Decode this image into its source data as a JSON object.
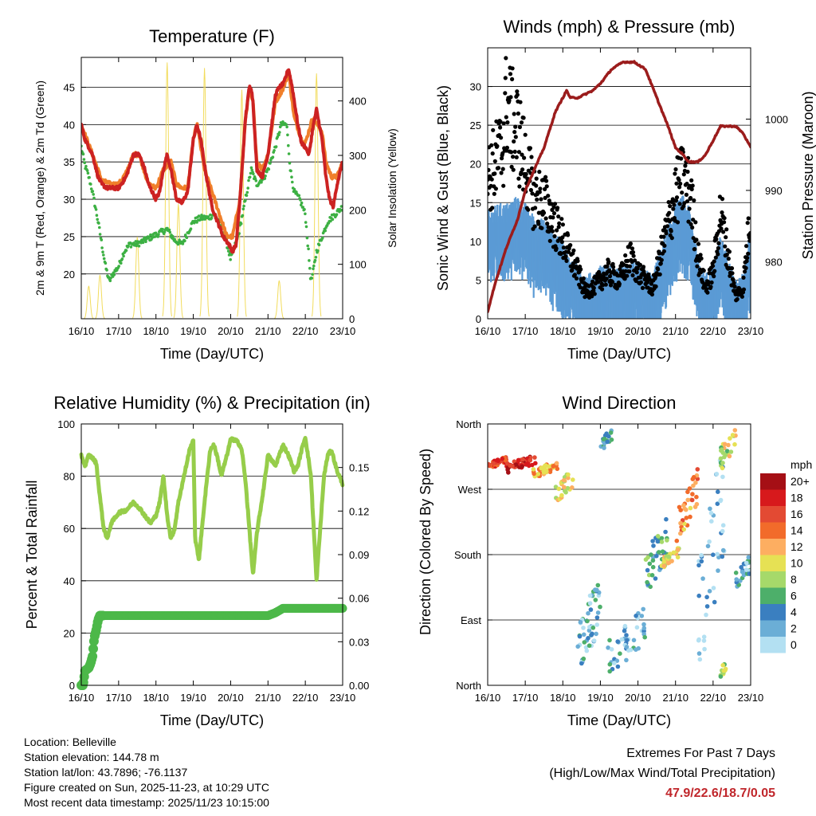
{
  "colors": {
    "temp_2m": "#cc2222",
    "temp_9m": "#f07f2a",
    "dewpoint": "#3cb043",
    "insolation": "#f2dc5d",
    "gust": "#000000",
    "wind": "#5b9bd5",
    "pressure": "#9b1c1c",
    "humidity": "#96cd4a",
    "rain": "#4cb849"
  },
  "chart_data": [
    {
      "id": "temperature",
      "type": "line",
      "title": "Temperature (F)",
      "xlabel": "Time (Day/UTC)",
      "ylabel": "2m & 9m T (Red, Orange) & 2m Td (Green)",
      "y2label": "Solar Insolation (Yellow)",
      "xticks": [
        "16/10",
        "17/10",
        "18/10",
        "19/10",
        "20/10",
        "21/10",
        "22/10",
        "23/10"
      ],
      "xlim": [
        0,
        7
      ],
      "ylim": [
        14,
        49
      ],
      "yticks": [
        20,
        25,
        30,
        35,
        40,
        45
      ],
      "y2lim": [
        0,
        480
      ],
      "y2ticks": [
        0,
        100,
        200,
        300,
        400
      ],
      "series": [
        {
          "name": "2m T",
          "color_key": "temp_2m",
          "axis": "left",
          "x": [
            0,
            0.1,
            0.2,
            0.3,
            0.45,
            0.55,
            0.7,
            0.8,
            1.0,
            1.2,
            1.4,
            1.55,
            1.7,
            1.8,
            1.9,
            2.0,
            2.1,
            2.2,
            2.3,
            2.4,
            2.55,
            2.7,
            2.85,
            3.0,
            3.1,
            3.2,
            3.35,
            3.5,
            3.65,
            3.8,
            3.95,
            4.05,
            4.15,
            4.25,
            4.4,
            4.5,
            4.55,
            4.6,
            4.7,
            4.85,
            5.0,
            5.15,
            5.2,
            5.3,
            5.42,
            5.55,
            5.65,
            5.8,
            5.9,
            6.0,
            6.1,
            6.2,
            6.3,
            6.45,
            6.55,
            6.65,
            6.75,
            6.85,
            7.0
          ],
          "values": [
            40,
            38,
            37,
            36,
            33,
            32,
            31.5,
            31.5,
            31.5,
            33,
            36,
            36,
            34,
            32,
            31,
            30,
            31,
            34,
            36,
            34,
            30,
            29.5,
            31,
            38,
            40,
            38,
            33,
            29,
            27,
            25,
            24,
            23,
            24,
            30,
            41,
            45,
            45,
            43,
            34,
            33,
            36,
            42,
            44,
            45,
            45.5,
            47.5,
            45,
            40,
            37.5,
            37,
            36,
            39.5,
            42,
            38,
            33,
            30,
            29,
            32,
            35
          ]
        },
        {
          "name": "9m T",
          "color_key": "temp_9m",
          "axis": "left",
          "x": [
            0,
            0.3,
            0.55,
            0.8,
            1.0,
            1.2,
            1.4,
            1.55,
            1.8,
            2.0,
            2.2,
            2.4,
            2.55,
            2.7,
            2.85,
            3.0,
            3.1,
            3.3,
            3.5,
            3.7,
            3.9,
            4.05,
            4.25,
            4.4,
            4.5,
            4.6,
            4.7,
            4.85,
            5.0,
            5.2,
            5.42,
            5.55,
            5.7,
            5.9,
            6.0,
            6.2,
            6.45,
            6.55,
            6.7,
            6.85,
            7.0
          ],
          "values": [
            40,
            36,
            32.5,
            32,
            32,
            33.5,
            36,
            36,
            32,
            31.5,
            34,
            35,
            32,
            31.5,
            31.5,
            38,
            40,
            34,
            31,
            28,
            25,
            25,
            30,
            41,
            44.5,
            43,
            35,
            34,
            36,
            43,
            45,
            47,
            41,
            38,
            37.5,
            41,
            39,
            35,
            33,
            33,
            35
          ]
        },
        {
          "name": "2m Td",
          "color_key": "dewpoint",
          "axis": "left",
          "x": [
            0,
            0.1,
            0.2,
            0.3,
            0.45,
            0.55,
            0.65,
            0.75,
            0.85,
            1.0,
            1.15,
            1.3,
            1.5,
            1.7,
            1.9,
            2.1,
            2.3,
            2.5,
            2.7,
            2.9,
            3.0,
            3.2,
            3.4,
            3.55,
            3.7,
            3.85,
            4.0,
            4.2,
            4.4,
            4.55,
            4.7,
            4.9,
            5.0,
            5.2,
            5.35,
            5.5,
            5.6,
            5.7,
            5.85,
            6.0,
            6.1,
            6.15,
            6.2,
            6.3,
            6.45,
            6.6,
            6.8,
            7.0
          ],
          "values": [
            37,
            34.5,
            33,
            31,
            27,
            24,
            21,
            19,
            20,
            21,
            23,
            24,
            24,
            24.5,
            25,
            25.5,
            26,
            24.5,
            24,
            26,
            27,
            27.5,
            27.5,
            28,
            27,
            25,
            22,
            25,
            30,
            34,
            32,
            33,
            34,
            37,
            40,
            40,
            34,
            31,
            30,
            28,
            22,
            19,
            20,
            23,
            25,
            27,
            28,
            29
          ]
        },
        {
          "name": "Solar Insolation",
          "color_key": "insolation",
          "axis": "right",
          "peak_days": [
            0.2,
            0.5,
            1.5,
            2.3,
            2.6,
            3.3,
            4.3,
            5.3,
            6.3
          ],
          "peak_values": [
            60,
            80,
            150,
            470,
            210,
            460,
            420,
            70,
            450
          ]
        }
      ]
    },
    {
      "id": "winds",
      "type": "scatter",
      "title": "Winds (mph) & Pressure (mb)",
      "xlabel": "Time (Day/UTC)",
      "ylabel": "Sonic Wind & Gust (Blue, Black)",
      "y2label": "Station Pressure (Maroon)",
      "xticks": [
        "16/10",
        "17/10",
        "18/10",
        "19/10",
        "20/10",
        "21/10",
        "22/10",
        "23/10"
      ],
      "xlim": [
        0,
        7
      ],
      "ylim": [
        0,
        35
      ],
      "yticks": [
        0,
        5,
        10,
        15,
        20,
        25,
        30
      ],
      "y2lim": [
        972,
        1010
      ],
      "y2ticks": [
        980,
        990,
        1000
      ],
      "gust_envelope": {
        "x": [
          0,
          0.2,
          0.4,
          0.5,
          0.6,
          0.8,
          1.0,
          1.2,
          1.5,
          1.8,
          2.0,
          2.2,
          2.4,
          2.6,
          2.8,
          3.0,
          3.2,
          3.5,
          3.8,
          4.0,
          4.2,
          4.4,
          4.6,
          4.8,
          5.0,
          5.2,
          5.4,
          5.6,
          5.8,
          6.0,
          6.2,
          6.4,
          6.6,
          6.8,
          7.0
        ],
        "values": [
          18,
          20,
          22,
          28,
          26,
          24,
          20,
          16,
          15,
          12,
          10,
          8,
          6,
          3.5,
          4,
          5,
          6,
          5,
          8,
          6,
          5,
          4,
          8,
          12,
          16,
          18,
          16,
          8,
          4,
          6,
          14,
          8,
          3,
          4,
          14
        ]
      },
      "wind_envelope": {
        "x": [
          0,
          0.3,
          0.5,
          0.8,
          1.0,
          1.3,
          1.5,
          1.8,
          2.0,
          2.2,
          2.4,
          2.6,
          2.8,
          3.0,
          3.2,
          3.5,
          3.8,
          4.0,
          4.2,
          4.4,
          4.6,
          4.8,
          5.0,
          5.2,
          5.4,
          5.6,
          5.8,
          6.0,
          6.2,
          6.4,
          6.6,
          6.8,
          7.0
        ],
        "values": [
          11,
          12,
          12,
          13,
          12,
          10,
          10,
          8,
          7,
          5,
          4,
          3,
          3,
          4,
          4,
          3.5,
          5,
          4,
          3.5,
          3,
          6,
          9,
          12,
          13,
          11,
          5,
          3,
          4,
          8,
          5,
          2,
          3,
          9
        ]
      },
      "pressure": {
        "x": [
          0,
          0.2,
          0.5,
          0.8,
          1.0,
          1.5,
          1.8,
          2.0,
          2.1,
          2.2,
          2.4,
          2.8,
          3.0,
          3.3,
          3.6,
          3.9,
          4.2,
          4.5,
          4.8,
          5.0,
          5.2,
          5.35,
          5.5,
          5.6,
          5.8,
          6.0,
          6.2,
          6.4,
          6.6,
          6.8,
          7.0
        ],
        "values": [
          973,
          977,
          982,
          986,
          990,
          996,
          1001,
          1003,
          1004,
          1003,
          1003,
          1004,
          1005,
          1007,
          1008,
          1008,
          1007,
          1003,
          999,
          996,
          995,
          994,
          994,
          994,
          995,
          997,
          999,
          999,
          999,
          998,
          996
        ]
      }
    },
    {
      "id": "humidity",
      "type": "line",
      "title": "Relative Humidity (%) & Precipitation (in)",
      "xlabel": "Time (Day/UTC)",
      "ylabel": "Percent & Total Rainfall",
      "xticks": [
        "16/10",
        "17/10",
        "18/10",
        "19/10",
        "20/10",
        "21/10",
        "22/10",
        "23/10"
      ],
      "xlim": [
        0,
        7
      ],
      "ylim": [
        0,
        100
      ],
      "yticks": [
        0,
        20,
        40,
        60,
        80,
        100
      ],
      "y2lim": [
        0,
        0.18
      ],
      "y2ticks": [
        "0.00",
        "0.03",
        "0.06",
        "0.09",
        "0.12",
        "0.15"
      ],
      "series": [
        {
          "name": "Relative Humidity",
          "color_key": "humidity",
          "x": [
            0,
            0.1,
            0.2,
            0.3,
            0.4,
            0.5,
            0.6,
            0.7,
            0.8,
            1.0,
            1.2,
            1.4,
            1.55,
            1.7,
            1.85,
            2.0,
            2.1,
            2.2,
            2.3,
            2.4,
            2.5,
            2.6,
            2.75,
            2.9,
            3.0,
            3.05,
            3.15,
            3.3,
            3.45,
            3.55,
            3.65,
            3.75,
            3.9,
            4.0,
            4.15,
            4.3,
            4.4,
            4.5,
            4.6,
            4.7,
            4.85,
            5.0,
            5.2,
            5.4,
            5.55,
            5.7,
            5.8,
            5.9,
            6.0,
            6.15,
            6.3,
            6.4,
            6.5,
            6.6,
            6.7,
            6.85,
            7.0
          ],
          "values": [
            88,
            84,
            88,
            87,
            85,
            72,
            60,
            56,
            62,
            66,
            67,
            70,
            68,
            65,
            62,
            65,
            70,
            80,
            65,
            56,
            60,
            70,
            80,
            90,
            94,
            56,
            48,
            70,
            90,
            92,
            87,
            80,
            88,
            94,
            94,
            90,
            78,
            60,
            42,
            58,
            72,
            88,
            84,
            92,
            88,
            82,
            84,
            90,
            95,
            80,
            40,
            60,
            80,
            88,
            90,
            82,
            77
          ]
        },
        {
          "name": "Total Precipitation",
          "color_key": "rain",
          "x": [
            0,
            0.05,
            0.1,
            0.2,
            0.25,
            0.3,
            0.35,
            0.4,
            0.45,
            0.5,
            0.55,
            0.6,
            3.0,
            5.0,
            5.2,
            5.4,
            6.0,
            7.0
          ],
          "values": [
            0,
            0.0,
            0.01,
            0.012,
            0.015,
            0.02,
            0.033,
            0.038,
            0.045,
            0.048,
            0.048,
            0.048,
            0.048,
            0.048,
            0.05,
            0.053,
            0.053,
            0.053
          ]
        }
      ]
    },
    {
      "id": "direction",
      "type": "scatter",
      "title": "Wind Direction",
      "xlabel": "Time (Day/UTC)",
      "ylabel": "Direction (Colored By Speed)",
      "xticks": [
        "16/10",
        "17/10",
        "18/10",
        "19/10",
        "20/10",
        "21/10",
        "22/10",
        "23/10"
      ],
      "xlim": [
        0,
        7
      ],
      "ylim": [
        0,
        360
      ],
      "yticks": [
        "North",
        "East",
        "South",
        "West",
        "North"
      ],
      "clusters": [
        {
          "x0": 0,
          "x1": 0.5,
          "d0": 298,
          "d1": 315,
          "speed": 16,
          "n": 40
        },
        {
          "x0": 0.5,
          "x1": 1.3,
          "d0": 292,
          "d1": 318,
          "speed": 18,
          "n": 45
        },
        {
          "x0": 1.2,
          "x1": 1.9,
          "d0": 285,
          "d1": 310,
          "speed": 12,
          "n": 35
        },
        {
          "x0": 1.8,
          "x1": 2.3,
          "d0": 250,
          "d1": 300,
          "speed": 10,
          "n": 25
        },
        {
          "x0": 2.4,
          "x1": 3.0,
          "d0": 5,
          "d1": 160,
          "speed": 3,
          "n": 55
        },
        {
          "x0": 3.0,
          "x1": 3.3,
          "d0": 320,
          "d1": 355,
          "speed": 4,
          "n": 18
        },
        {
          "x0": 3.2,
          "x1": 4.2,
          "d0": 10,
          "d1": 110,
          "speed": 3,
          "n": 45
        },
        {
          "x0": 4.2,
          "x1": 4.8,
          "d0": 120,
          "d1": 240,
          "speed": 5,
          "n": 40
        },
        {
          "x0": 4.6,
          "x1": 5.1,
          "d0": 160,
          "d1": 190,
          "speed": 10,
          "n": 30
        },
        {
          "x0": 5.0,
          "x1": 5.6,
          "d0": 180,
          "d1": 300,
          "speed": 13,
          "n": 35
        },
        {
          "x0": 5.6,
          "x1": 6.3,
          "d0": 5,
          "d1": 350,
          "speed": 2,
          "n": 45
        },
        {
          "x0": 6.2,
          "x1": 6.6,
          "d0": 295,
          "d1": 360,
          "speed": 9,
          "n": 25
        },
        {
          "x0": 6.2,
          "x1": 6.4,
          "d0": 10,
          "d1": 40,
          "speed": 7,
          "n": 12
        },
        {
          "x0": 6.6,
          "x1": 7.0,
          "d0": 130,
          "d1": 180,
          "speed": 3,
          "n": 25
        }
      ],
      "colorbar": {
        "unit": "mph",
        "labels": [
          "20+",
          "18",
          "16",
          "14",
          "12",
          "10",
          "8",
          "6",
          "4",
          "2",
          "0"
        ],
        "colors": [
          "#a50f15",
          "#d7191c",
          "#e34a33",
          "#f26b2a",
          "#fdae61",
          "#e6e154",
          "#a6d96a",
          "#4daf6a",
          "#3a7fc0",
          "#6baed6",
          "#b3e0f2"
        ]
      }
    }
  ],
  "footer": {
    "location": "Location: Belleville",
    "elevation": "Station elevation: 144.78 m",
    "latlon": "Station lat/lon: 43.7896; -76.1137",
    "created": "Figure created on Sun, 2025-11-23, at 10:29 UTC",
    "recent": "Most recent data timestamp: 2025/11/23 10:15:00"
  },
  "extremes": {
    "title": "Extremes For Past 7 Days",
    "subtitle": "(High/Low/Max Wind/Total Precipitation)",
    "values": "47.9/22.6/18.7/0.05"
  }
}
